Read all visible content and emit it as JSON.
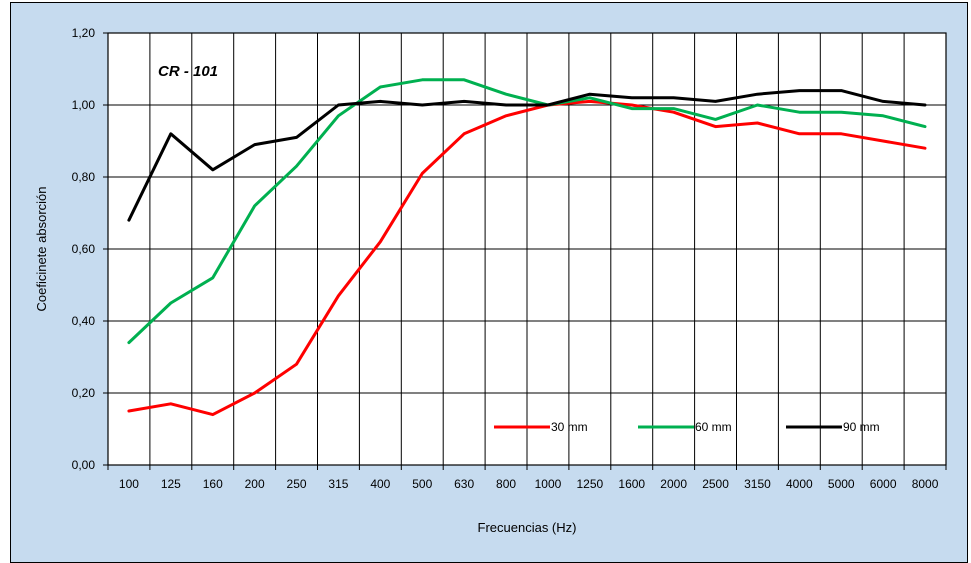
{
  "chart_data": {
    "type": "line",
    "title": "",
    "annotation": "CR - 101",
    "xlabel": "Frecuencias (Hz)",
    "ylabel": "Coeficinete absorción",
    "ylim": [
      0,
      1.2
    ],
    "yticks": [
      "0,00",
      "0,20",
      "0,40",
      "0,60",
      "0,80",
      "1,00",
      "1,20"
    ],
    "categories": [
      "100",
      "125",
      "160",
      "200",
      "250",
      "315",
      "400",
      "500",
      "630",
      "800",
      "1000",
      "1250",
      "1600",
      "2000",
      "2500",
      "3150",
      "4000",
      "5000",
      "6000",
      "8000"
    ],
    "grid": true,
    "legend_position": "bottom-right",
    "series": [
      {
        "name": "30 mm",
        "color": "#ff0000",
        "values": [
          0.15,
          0.17,
          0.14,
          0.2,
          0.28,
          0.47,
          0.62,
          0.81,
          0.92,
          0.97,
          1.0,
          1.01,
          1.0,
          0.98,
          0.94,
          0.95,
          0.92,
          0.92,
          0.9,
          0.88
        ]
      },
      {
        "name": "60 mm",
        "color": "#00b050",
        "values": [
          0.34,
          0.45,
          0.52,
          0.72,
          0.83,
          0.97,
          1.05,
          1.07,
          1.07,
          1.03,
          1.0,
          1.02,
          0.99,
          0.99,
          0.96,
          1.0,
          0.98,
          0.98,
          0.97,
          0.94
        ]
      },
      {
        "name": "90 mm",
        "color": "#000000",
        "values": [
          0.68,
          0.92,
          0.82,
          0.89,
          0.91,
          1.0,
          1.01,
          1.0,
          1.01,
          1.0,
          1.0,
          1.03,
          1.02,
          1.02,
          1.01,
          1.03,
          1.04,
          1.04,
          1.01,
          1.0
        ]
      }
    ]
  }
}
